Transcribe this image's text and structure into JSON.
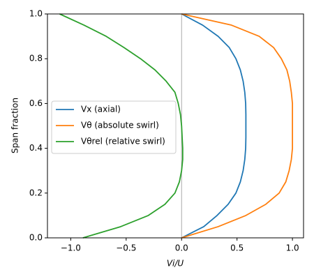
{
  "chart_data": {
    "type": "line",
    "orientation": "horizontal",
    "xlabel": "Vi/U",
    "ylabel": "Span fraction",
    "y": [
      0,
      0.05,
      0.1,
      0.15,
      0.2,
      0.25,
      0.3,
      0.35,
      0.4,
      0.45,
      0.5,
      0.55,
      0.6,
      0.65,
      0.7,
      0.75,
      0.8,
      0.85,
      0.9,
      0.95,
      1
    ],
    "series": [
      {
        "name": "Vx (axial)",
        "color": "#1f77b4",
        "values": [
          0,
          0.2,
          0.32,
          0.42,
          0.49,
          0.53,
          0.555,
          0.57,
          0.578,
          0.58,
          0.58,
          0.58,
          0.578,
          0.57,
          0.555,
          0.53,
          0.49,
          0.43,
          0.33,
          0.19,
          0
        ]
      },
      {
        "name": "Vθ (absolute swirl)",
        "color": "#ff7f0e",
        "values": [
          0,
          0.33,
          0.58,
          0.76,
          0.88,
          0.94,
          0.97,
          0.99,
          1.0,
          1.0,
          1.0,
          1.0,
          1.0,
          0.99,
          0.975,
          0.95,
          0.9,
          0.83,
          0.7,
          0.45,
          0
        ]
      },
      {
        "name": "Vθrel (relative swirl)",
        "color": "#2ca02c",
        "values": [
          -0.89,
          -0.55,
          -0.3,
          -0.15,
          -0.06,
          -0.02,
          0.0,
          0.01,
          0.01,
          0.005,
          0.0,
          -0.01,
          -0.03,
          -0.06,
          -0.14,
          -0.24,
          -0.37,
          -0.52,
          -0.68,
          -0.88,
          -1.1
        ]
      }
    ],
    "vline": 0,
    "xlim": [
      -1.21,
      1.1
    ],
    "ylim": [
      0,
      1
    ],
    "xticks": [
      {
        "value": -1,
        "label": "−1.0"
      },
      {
        "value": -0.5,
        "label": "−0.5"
      },
      {
        "value": 0,
        "label": "0.0"
      },
      {
        "value": 0.5,
        "label": "0.5"
      },
      {
        "value": 1,
        "label": "1.0"
      }
    ],
    "yticks": [
      {
        "value": 0,
        "label": "0.0"
      },
      {
        "value": 0.2,
        "label": "0.2"
      },
      {
        "value": 0.4,
        "label": "0.4"
      },
      {
        "value": 0.6,
        "label": "0.6"
      },
      {
        "value": 0.8,
        "label": "0.8"
      },
      {
        "value": 1,
        "label": "1.0"
      }
    ],
    "legend": "center-left"
  }
}
